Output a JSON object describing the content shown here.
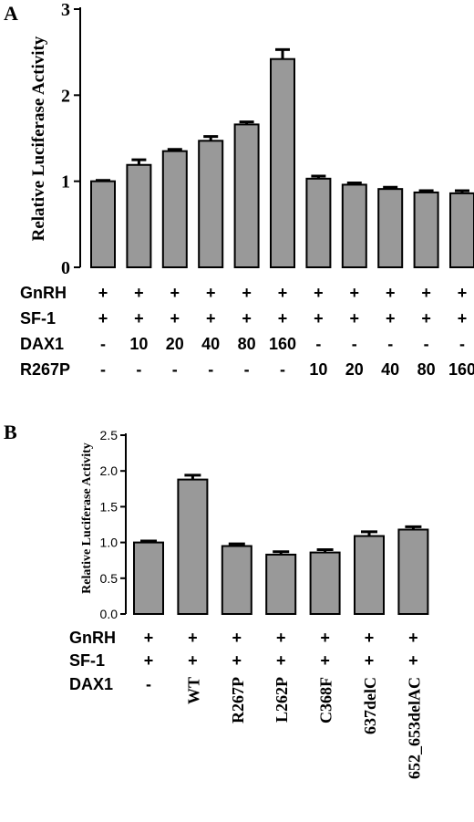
{
  "colors": {
    "bar_fill": "#999999",
    "bar_stroke": "#000000",
    "axis": "#000000",
    "background": "#ffffff"
  },
  "chart_data": [
    {
      "type": "bar",
      "panel_label": "A",
      "ylabel": "Relative Luciferase Activity",
      "ylim": [
        0,
        3
      ],
      "yticks": [
        "0",
        "1",
        "2",
        "3"
      ],
      "ytick_values": [
        0,
        1,
        2,
        3
      ],
      "grid": false,
      "values": [
        1.0,
        1.19,
        1.35,
        1.47,
        1.66,
        2.42,
        1.03,
        0.96,
        0.91,
        0.87,
        0.86
      ],
      "errors": [
        0.01,
        0.06,
        0.02,
        0.05,
        0.03,
        0.11,
        0.03,
        0.02,
        0.02,
        0.02,
        0.03
      ],
      "condition_rows": [
        {
          "label": "GnRH",
          "cells": [
            "+",
            "+",
            "+",
            "+",
            "+",
            "+",
            "+",
            "+",
            "+",
            "+",
            "+"
          ]
        },
        {
          "label": "SF-1",
          "cells": [
            "+",
            "+",
            "+",
            "+",
            "+",
            "+",
            "+",
            "+",
            "+",
            "+",
            "+"
          ]
        },
        {
          "label": "DAX1",
          "cells": [
            "-",
            "10",
            "20",
            "40",
            "80",
            "160",
            "-",
            "-",
            "-",
            "-",
            "-"
          ]
        },
        {
          "label": "R267P",
          "cells": [
            "-",
            "-",
            "-",
            "-",
            "-",
            "-",
            "10",
            "20",
            "40",
            "80",
            "160"
          ]
        }
      ]
    },
    {
      "type": "bar",
      "panel_label": "B",
      "ylabel": "Relative Luciferase Activity",
      "ylim": [
        0,
        2.5
      ],
      "yticks": [
        "0.0",
        "0.5",
        "1.0",
        "1.5",
        "2.0",
        "2.5"
      ],
      "ytick_values": [
        0,
        0.5,
        1.0,
        1.5,
        2.0,
        2.5
      ],
      "grid": false,
      "values": [
        1.0,
        1.88,
        0.95,
        0.83,
        0.86,
        1.09,
        1.18
      ],
      "errors": [
        0.02,
        0.06,
        0.03,
        0.04,
        0.04,
        0.06,
        0.04
      ],
      "condition_rows": [
        {
          "label": "GnRH",
          "cells": [
            "+",
            "+",
            "+",
            "+",
            "+",
            "+",
            "+"
          ]
        },
        {
          "label": "SF-1",
          "cells": [
            "+",
            "+",
            "+",
            "+",
            "+",
            "+",
            "+"
          ]
        },
        {
          "label": "DAX1",
          "cells": [
            "-",
            "WT",
            "R267P",
            "L262P",
            "C368F",
            "637delC",
            "652_653delAC"
          ]
        }
      ]
    }
  ]
}
